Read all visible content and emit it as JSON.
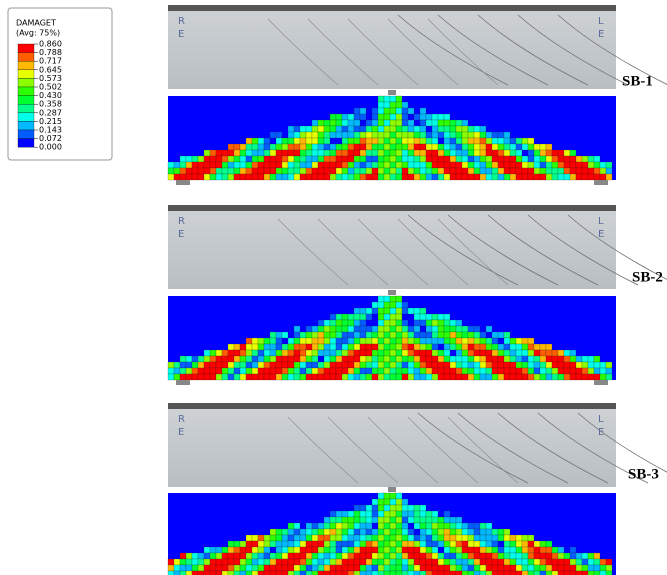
{
  "legend": {
    "title": "DAMAGET",
    "subtitle": "(Avg: 75%)",
    "levels": [
      "0.860",
      "0.788",
      "0.717",
      "0.645",
      "0.573",
      "0.502",
      "0.430",
      "0.358",
      "0.287",
      "0.215",
      "0.143",
      "0.072",
      "0.000"
    ],
    "band_colors": [
      "#ff0000",
      "#ff5d00",
      "#ffb900",
      "#e8ff00",
      "#8bff00",
      "#2eff00",
      "#00ff2e",
      "#00ff8b",
      "#00ffe8",
      "#00b9ff",
      "#005dff",
      "#0000ff"
    ]
  },
  "specimens": [
    {
      "label": "SB-1",
      "left_marks": [
        "R",
        "E"
      ],
      "right_marks": [
        "L",
        "E"
      ]
    },
    {
      "label": "SB-2",
      "left_marks": [
        "R",
        "E"
      ],
      "right_marks": [
        "L",
        "E"
      ]
    },
    {
      "label": "SB-3",
      "left_marks": [
        "R",
        "E"
      ],
      "right_marks": [
        "L",
        "E"
      ]
    }
  ]
}
